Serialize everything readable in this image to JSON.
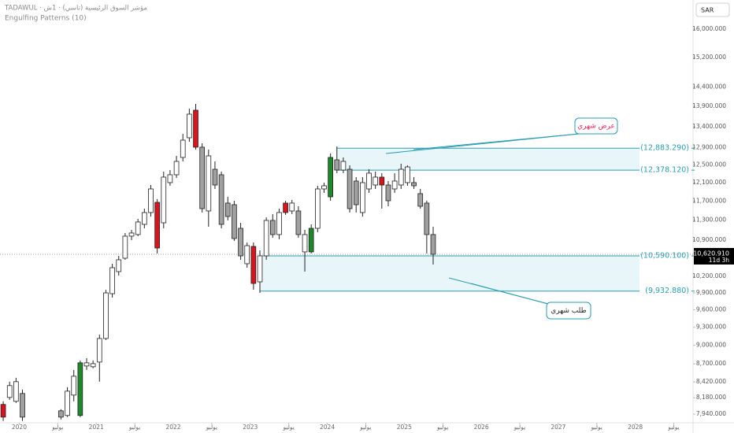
{
  "chart_data": {
    "type": "candlestick",
    "title": "TADAWUL · مؤشر السوق الرئيسية (تاسي) · 1ش",
    "subtitle": "Engulfing Patterns (10)",
    "currency": "SAR",
    "countdown": "11d 3h",
    "last_price_label": "10,620.910",
    "log": true,
    "grid": false,
    "x": [
      "2019-10",
      "2019-11",
      "2019-12",
      "2020-01",
      "2020-07",
      "2020-08",
      "2020-09",
      "2020-10",
      "2020-11",
      "2020-12",
      "2021-01",
      "2021-02",
      "2021-03",
      "2021-04",
      "2021-05",
      "2021-06",
      "2021-07",
      "2021-08",
      "2021-09",
      "2021-10",
      "2021-11",
      "2021-12",
      "2022-01",
      "2022-02",
      "2022-03",
      "2022-04",
      "2022-05",
      "2022-06",
      "2022-07",
      "2022-08",
      "2022-09",
      "2022-10",
      "2022-11",
      "2022-12",
      "2023-01",
      "2023-02",
      "2023-03",
      "2023-04",
      "2023-05",
      "2023-06",
      "2023-07",
      "2023-08",
      "2023-09",
      "2023-10",
      "2023-11",
      "2023-12",
      "2024-01",
      "2024-02",
      "2024-03",
      "2024-04",
      "2024-05",
      "2024-06",
      "2024-07",
      "2024-08",
      "2024-09",
      "2024-10",
      "2024-11",
      "2024-12",
      "2025-01",
      "2025-02",
      "2025-03",
      "2025-04",
      "2025-05"
    ],
    "open": [
      8081,
      8185,
      8127,
      8244,
      7988,
      7920,
      8220,
      7920,
      8667,
      8655,
      8729,
      9112,
      9886,
      10291,
      10545,
      10977,
      11009,
      11215,
      11459,
      11674,
      11247,
      12100,
      12275,
      12668,
      13130,
      13805,
      12906,
      11492,
      12398,
      12275,
      11658,
      11624,
      11135,
      10440,
      10774,
      10101,
      10590,
      11296,
      11009,
      11658,
      11492,
      11492,
      10667,
      10667,
      11135,
      11962,
      11792,
      12613,
      12380,
      12398,
      12135,
      11459,
      11962,
      12048,
      12222,
      12048,
      11962,
      12048,
      12100,
      12100,
      11860,
      11658,
      11009
    ],
    "high": [
      8127,
      8423,
      8483,
      8303,
      8011,
      8339,
      8605,
      8754,
      8792,
      8754,
      9177,
      9957,
      10440,
      10590,
      11040,
      11103,
      11328,
      11541,
      12048,
      11742,
      12345,
      12380,
      12704,
      13224,
      13845,
      13964,
      12999,
      12850,
      12577,
      12345,
      11792,
      11708,
      11247,
      10851,
      10851,
      10697,
      11361,
      11426,
      11541,
      11708,
      11725,
      11591,
      11103,
      11215,
      12031,
      12100,
      12759,
      12925,
      12668,
      12487,
      12222,
      12222,
      12398,
      12345,
      12310,
      12135,
      12310,
      12523,
      12487,
      12222,
      11962,
      11708,
      11167
    ],
    "low": [
      7841,
      8150,
      8104,
      7841,
      7863,
      7897,
      8127,
      7897,
      8605,
      8630,
      8423,
      9086,
      9816,
      10218,
      10515,
      10898,
      10977,
      11135,
      11377,
      10637,
      11135,
      12031,
      12205,
      12577,
      13036,
      12850,
      11459,
      11167,
      11962,
      11135,
      11296,
      10883,
      10515,
      10365,
      9957,
      9900,
      10515,
      10946,
      10914,
      11410,
      11426,
      10946,
      10291,
      10637,
      11056,
      11877,
      11708,
      12310,
      12310,
      11459,
      11459,
      11377,
      11877,
      11962,
      11541,
      11591,
      11877,
      11962,
      12031,
      11962,
      11541,
      10637,
      10425
    ],
    "close": [
      7897,
      8363,
      8423,
      7897,
      7897,
      8279,
      8507,
      8717,
      8717,
      8704,
      9112,
      9900,
      10365,
      10515,
      10977,
      11040,
      11264,
      11459,
      11962,
      10743,
      12222,
      12275,
      12577,
      13073,
      13706,
      12906,
      11541,
      12704,
      12048,
      11215,
      11377,
      10930,
      10590,
      10789,
      10072,
      10590,
      11296,
      11009,
      11459,
      11459,
      11658,
      11009,
      11009,
      11135,
      11962,
      12031,
      12668,
      12380,
      12577,
      11541,
      11624,
      12100,
      12310,
      12222,
      12048,
      11708,
      12135,
      12398,
      12451,
      12031,
      11591,
      11009,
      10620.91
    ],
    "colors": [
      "#d8141f",
      "#ffffff",
      "#ffffff",
      "#a0a0a0",
      "#a0a0a0",
      "#ffffff",
      "#ffffff",
      "#1c8a2b",
      "#ffffff",
      "#ffffff",
      "#ffffff",
      "#ffffff",
      "#ffffff",
      "#ffffff",
      "#ffffff",
      "#ffffff",
      "#ffffff",
      "#ffffff",
      "#ffffff",
      "#d8141f",
      "#ffffff",
      "#ffffff",
      "#ffffff",
      "#ffffff",
      "#ffffff",
      "#d8141f",
      "#a0a0a0",
      "#ffffff",
      "#a0a0a0",
      "#a0a0a0",
      "#a0a0a0",
      "#a0a0a0",
      "#a0a0a0",
      "#ffffff",
      "#d8141f",
      "#ffffff",
      "#ffffff",
      "#a0a0a0",
      "#ffffff",
      "#d8141f",
      "#ffffff",
      "#a0a0a0",
      "#ffffff",
      "#1c8a2b",
      "#ffffff",
      "#ffffff",
      "#1c8a2b",
      "#a0a0a0",
      "#ffffff",
      "#a0a0a0",
      "#a0a0a0",
      "#ffffff",
      "#ffffff",
      "#ffffff",
      "#d8141f",
      "#a0a0a0",
      "#ffffff",
      "#ffffff",
      "#ffffff",
      "#a0a0a0",
      "#a0a0a0",
      "#a0a0a0",
      "#a0a0a0"
    ],
    "xlim": [
      "2019-10",
      "2028-10"
    ],
    "xticks": [
      {
        "value": "2020-01",
        "label": "2020"
      },
      {
        "value": "2020-07",
        "label": "يوليو"
      },
      {
        "value": "2021-01",
        "label": "2021"
      },
      {
        "value": "2021-07",
        "label": "يوليو"
      },
      {
        "value": "2022-01",
        "label": "2022"
      },
      {
        "value": "2022-07",
        "label": "يوليو"
      },
      {
        "value": "2023-01",
        "label": "2023"
      },
      {
        "value": "2023-07",
        "label": "يوليو"
      },
      {
        "value": "2024-01",
        "label": "2024"
      },
      {
        "value": "2024-07",
        "label": "يوليو"
      },
      {
        "value": "2025-01",
        "label": "2025"
      },
      {
        "value": "2025-07",
        "label": "يوليو"
      },
      {
        "value": "2026-01",
        "label": "2026"
      },
      {
        "value": "2026-07",
        "label": "يوليو"
      },
      {
        "value": "2027-01",
        "label": "2027"
      },
      {
        "value": "2027-07",
        "label": "يوليو"
      },
      {
        "value": "2028-01",
        "label": "2028"
      },
      {
        "value": "2028-07",
        "label": "يوليو"
      }
    ],
    "ylim": [
      7816,
      16871
    ],
    "yticks": [
      {
        "value": 16000,
        "label": "16,000.000"
      },
      {
        "value": 15200,
        "label": "15,200.000"
      },
      {
        "value": 14400,
        "label": "14,400.000"
      },
      {
        "value": 13900,
        "label": "13,900.000"
      },
      {
        "value": 13400,
        "label": "13,400.000"
      },
      {
        "value": 12900,
        "label": "12,900.000"
      },
      {
        "value": 12500,
        "label": "12,500.000"
      },
      {
        "value": 12100,
        "label": "12,100.000"
      },
      {
        "value": 11700,
        "label": "11,700.000"
      },
      {
        "value": 11300,
        "label": "11,300.000"
      },
      {
        "value": 10900,
        "label": "10,900.000"
      },
      {
        "value": 10200,
        "label": "10,200.000"
      },
      {
        "value": 9900,
        "label": "9,900.000"
      },
      {
        "value": 9600,
        "label": "9,600.000"
      },
      {
        "value": 9300,
        "label": "9,300.000"
      },
      {
        "value": 9000,
        "label": "9,000.000"
      },
      {
        "value": 8700,
        "label": "8,700.000"
      },
      {
        "value": 8420,
        "label": "8,420.000"
      },
      {
        "value": 8180,
        "label": "8,180.000"
      },
      {
        "value": 7940,
        "label": "7,940.000"
      }
    ],
    "zones": [
      {
        "from": "2024-02",
        "top": {
          "value": 12883.29,
          "label": "(12,883.290)"
        },
        "bottom": {
          "value": 12378.12,
          "label": "(12,378.120)"
        },
        "fill": "#e9f6f9",
        "line": "#2a9cb0"
      },
      {
        "from": "2023-02",
        "top": {
          "value": 10590.1,
          "label": "(10,590.100)"
        },
        "bottom": {
          "value": 9932.88,
          "label": "(9,932.880)"
        },
        "fill": "#e9f6f9",
        "line": "#2a9cb0"
      }
    ],
    "annotations": [
      {
        "text": "عرض شهري",
        "color": "#e0245e"
      },
      {
        "text": "طلب شهري",
        "color": "#222222"
      }
    ]
  }
}
